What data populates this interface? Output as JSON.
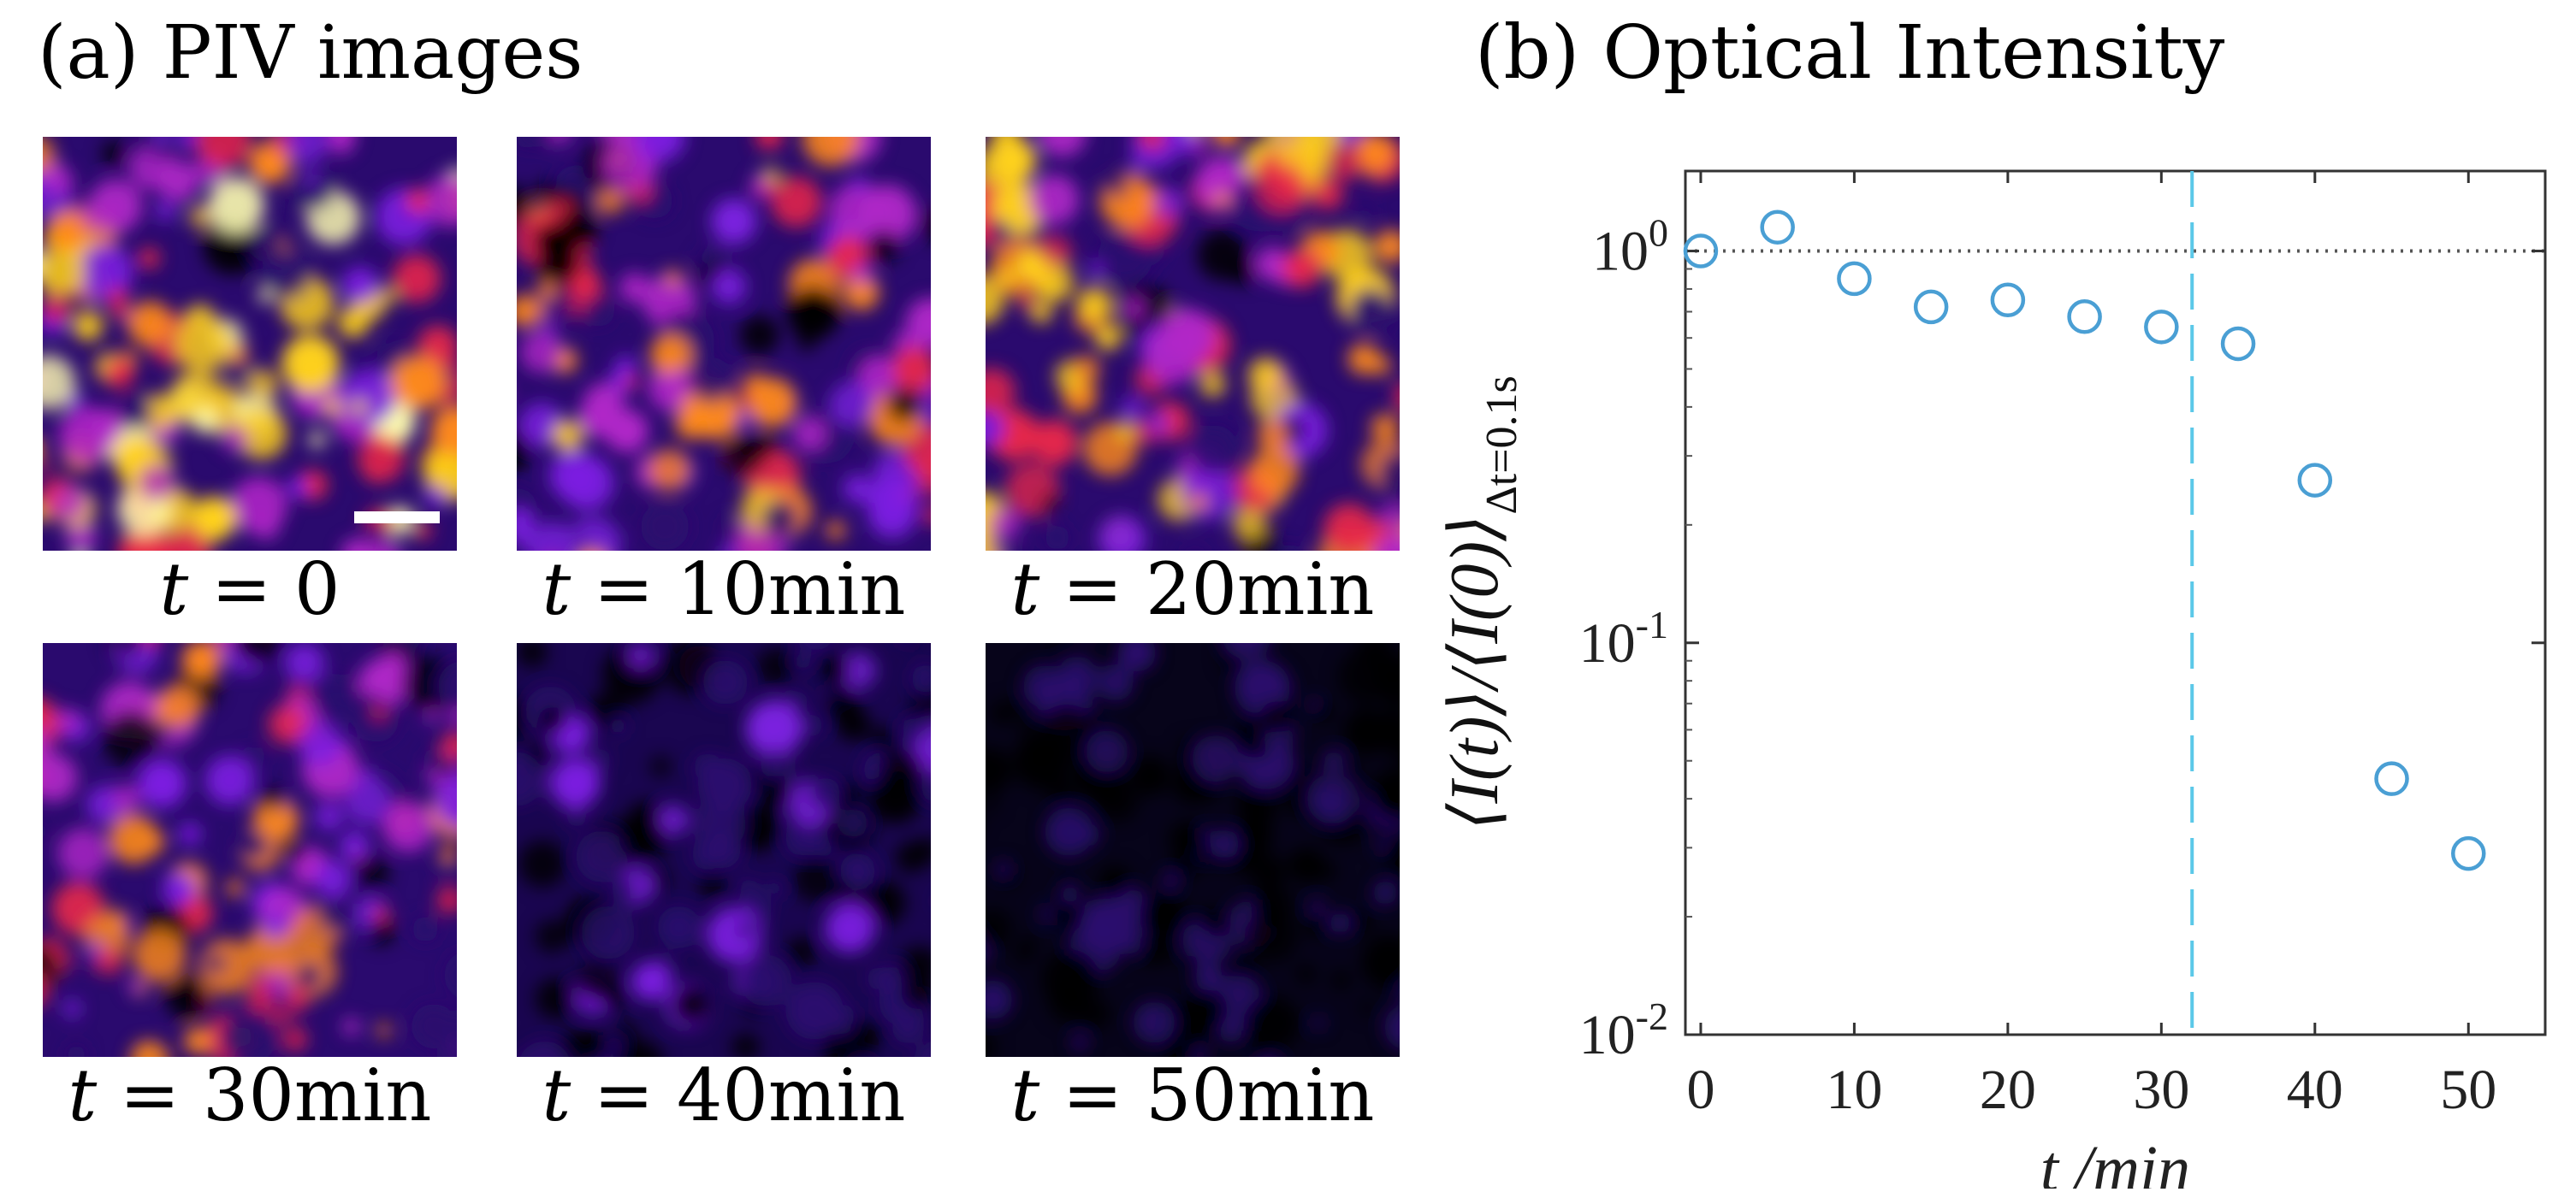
{
  "panel_a": {
    "title": "(a) PIV images",
    "images": [
      {
        "t_symbol": "t",
        "eq": " = ",
        "value": "0",
        "label": "t = 0",
        "brightness": 1.0,
        "scale_bar": true
      },
      {
        "t_symbol": "t",
        "eq": " = ",
        "value": "10min",
        "label": "t = 10min",
        "brightness": 0.62,
        "scale_bar": false
      },
      {
        "t_symbol": "t",
        "eq": " = ",
        "value": "20min",
        "label": "t = 20min",
        "brightness": 0.85,
        "scale_bar": false
      },
      {
        "t_symbol": "t",
        "eq": " = ",
        "value": "30min",
        "label": "t = 30min",
        "brightness": 0.55,
        "scale_bar": false
      },
      {
        "t_symbol": "t",
        "eq": " = ",
        "value": "40min",
        "label": "t = 40min",
        "brightness": 0.28,
        "scale_bar": false
      },
      {
        "t_symbol": "t",
        "eq": " = ",
        "value": "50min",
        "label": "t = 50min",
        "brightness": 0.06,
        "scale_bar": false
      }
    ],
    "colormap": [
      "#000000",
      "#2a0a6e",
      "#7b1fe0",
      "#b026c8",
      "#e8264a",
      "#ff8a1a",
      "#ffd21a",
      "#ffffb0"
    ]
  },
  "chart_data": {
    "title": "(b) Optical Intensity",
    "type": "scatter",
    "xlabel": "t /min",
    "ylabel": "⟨I(t)⟩/⟨I(0)⟩",
    "ylabel_subscript": "Δt=0.1s",
    "x_scale": "linear",
    "y_scale": "log",
    "xlim": [
      -1,
      55
    ],
    "ylim": [
      0.01,
      1.6
    ],
    "x_ticks": [
      0,
      10,
      20,
      30,
      40,
      50
    ],
    "x_tick_labels": [
      "0",
      "10",
      "20",
      "30",
      "40",
      "50"
    ],
    "y_ticks": [
      0.01,
      0.1,
      1
    ],
    "y_tick_labels": [
      {
        "base": "10",
        "exp": "-2"
      },
      {
        "base": "10",
        "exp": "-1"
      },
      {
        "base": "10",
        "exp": "0"
      }
    ],
    "series": [
      {
        "name": "intensity",
        "marker": "circle-open",
        "color": "#4a9fd4",
        "x": [
          0,
          5,
          10,
          15,
          20,
          25,
          30,
          35,
          40,
          45,
          50
        ],
        "y": [
          1.0,
          1.15,
          0.85,
          0.72,
          0.75,
          0.68,
          0.64,
          0.58,
          0.26,
          0.045,
          0.029
        ]
      }
    ],
    "hline": {
      "y": 1.0,
      "style": "dotted",
      "color": "#555555"
    },
    "vline": {
      "x": 32,
      "style": "dashed",
      "color": "#5bc8e8"
    }
  }
}
